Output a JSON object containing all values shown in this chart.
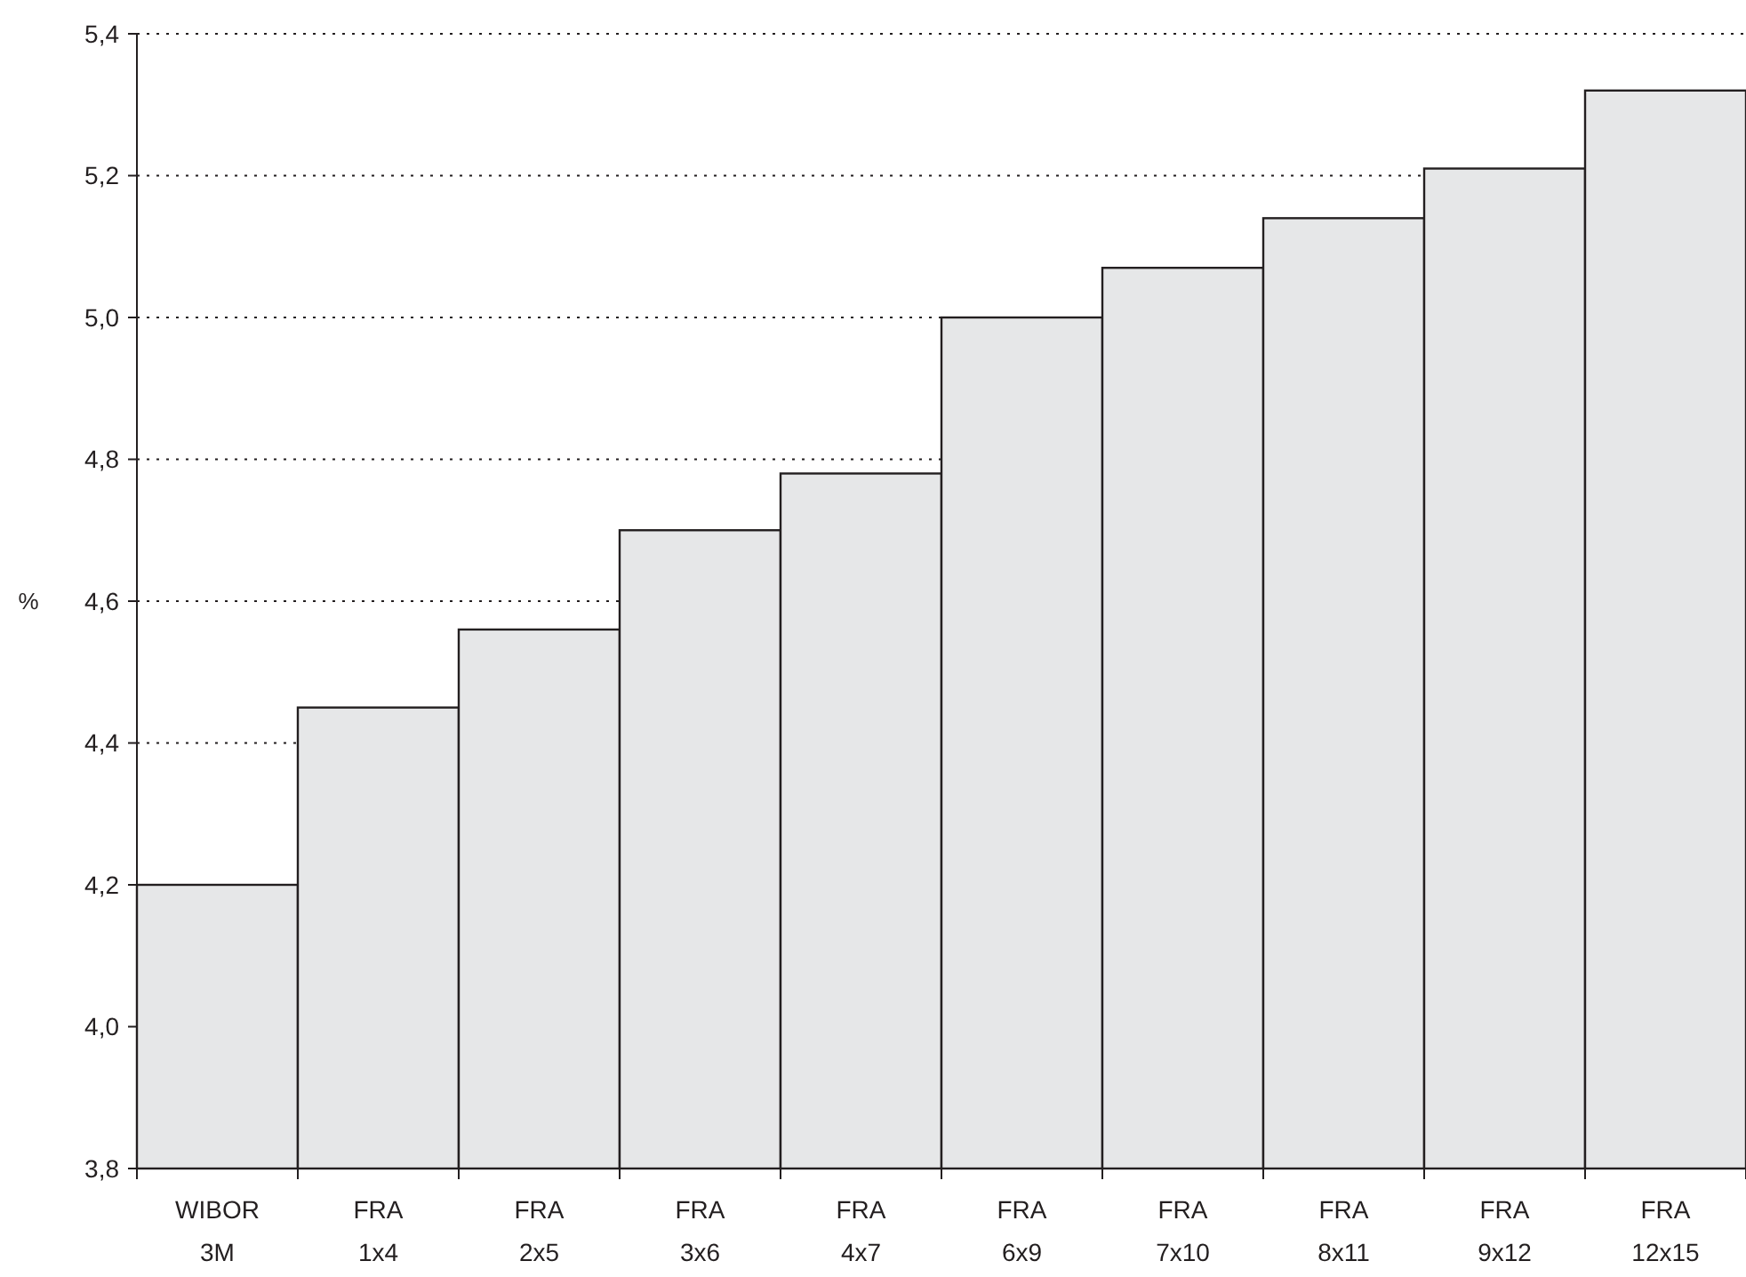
{
  "chart_data": {
    "type": "bar",
    "ylabel": "%",
    "categories": [
      "WIBOR\n3M",
      "FRA\n1x4",
      "FRA\n2x5",
      "FRA\n3x6",
      "FRA\n4x7",
      "FRA\n6x9",
      "FRA\n7x10",
      "FRA\n8x11",
      "FRA\n9x12",
      "FRA\n12x15"
    ],
    "values": [
      4.2,
      4.45,
      4.56,
      4.7,
      4.78,
      5.0,
      5.07,
      5.14,
      5.21,
      5.32
    ],
    "color": "#e6e7e8",
    "ylim": [
      3.8,
      5.4
    ],
    "yticks": [
      {
        "value": 3.8,
        "label": "3,8"
      },
      {
        "value": 4.0,
        "label": "4,0"
      },
      {
        "value": 4.2,
        "label": "4,2"
      },
      {
        "value": 4.4,
        "label": "4,4"
      },
      {
        "value": 4.6,
        "label": "4,6"
      },
      {
        "value": 4.8,
        "label": "4,8"
      },
      {
        "value": 5.0,
        "label": "5,0"
      },
      {
        "value": 5.2,
        "label": "5,2"
      },
      {
        "value": 5.4,
        "label": "5,4"
      }
    ],
    "grid": "y"
  }
}
